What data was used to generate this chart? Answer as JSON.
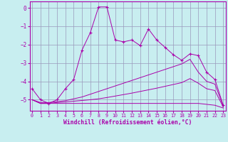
{
  "xlabel": "Windchill (Refroidissement éolien,°C)",
  "background_color": "#c8eef0",
  "grid_color": "#9999bb",
  "line_color": "#aa00aa",
  "x_ticks": [
    0,
    1,
    2,
    3,
    4,
    5,
    6,
    7,
    8,
    9,
    10,
    11,
    12,
    13,
    14,
    15,
    16,
    17,
    18,
    19,
    20,
    21,
    22,
    23
  ],
  "y_ticks": [
    0,
    -1,
    -2,
    -3,
    -4,
    -5
  ],
  "xlim": [
    -0.3,
    23.3
  ],
  "ylim": [
    -5.6,
    0.35
  ],
  "line1_x": [
    0,
    1,
    2,
    3,
    4,
    5,
    6,
    7,
    8,
    9,
    10,
    11,
    12,
    13,
    14,
    15,
    16,
    17,
    18,
    19,
    20,
    21,
    22,
    23
  ],
  "line1_y": [
    -4.4,
    -5.0,
    -5.2,
    -5.0,
    -4.4,
    -3.9,
    -2.3,
    -1.35,
    0.05,
    0.05,
    -1.75,
    -1.85,
    -1.75,
    -2.05,
    -1.15,
    -1.75,
    -2.15,
    -2.55,
    -2.85,
    -2.5,
    -2.6,
    -3.5,
    -3.9,
    -5.3
  ],
  "line2_x": [
    0,
    1,
    2,
    3,
    4,
    5,
    6,
    7,
    8,
    9,
    10,
    11,
    12,
    13,
    14,
    15,
    16,
    17,
    18,
    19,
    20,
    21,
    22,
    23
  ],
  "line2_y": [
    -5.0,
    -5.15,
    -5.15,
    -5.1,
    -5.05,
    -4.95,
    -4.85,
    -4.7,
    -4.55,
    -4.4,
    -4.25,
    -4.1,
    -3.95,
    -3.8,
    -3.65,
    -3.5,
    -3.35,
    -3.2,
    -3.05,
    -2.8,
    -3.5,
    -4.0,
    -4.15,
    -5.35
  ],
  "line3_x": [
    0,
    1,
    2,
    3,
    4,
    5,
    6,
    7,
    8,
    9,
    10,
    11,
    12,
    13,
    14,
    15,
    16,
    17,
    18,
    19,
    20,
    21,
    22,
    23
  ],
  "line3_y": [
    -5.0,
    -5.2,
    -5.2,
    -5.15,
    -5.12,
    -5.08,
    -5.04,
    -5.0,
    -4.95,
    -4.88,
    -4.8,
    -4.72,
    -4.64,
    -4.55,
    -4.46,
    -4.37,
    -4.27,
    -4.17,
    -4.07,
    -3.85,
    -4.1,
    -4.4,
    -4.5,
    -5.4
  ],
  "line4_x": [
    0,
    1,
    2,
    3,
    4,
    5,
    6,
    7,
    8,
    9,
    10,
    11,
    12,
    13,
    14,
    15,
    16,
    17,
    18,
    19,
    20,
    21,
    22,
    23
  ],
  "line4_y": [
    -5.0,
    -5.2,
    -5.2,
    -5.2,
    -5.2,
    -5.2,
    -5.2,
    -5.2,
    -5.2,
    -5.2,
    -5.2,
    -5.2,
    -5.2,
    -5.2,
    -5.2,
    -5.2,
    -5.2,
    -5.2,
    -5.2,
    -5.2,
    -5.2,
    -5.25,
    -5.3,
    -5.45
  ]
}
